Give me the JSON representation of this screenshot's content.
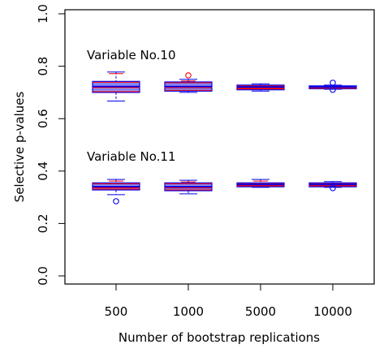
{
  "chart_data": {
    "type": "box",
    "xlabel": "Number of bootstrap replications",
    "ylabel": "Selective p-values",
    "categories": [
      "500",
      "1000",
      "5000",
      "10000"
    ],
    "ylim": [
      0.0,
      1.0
    ],
    "yticks": [
      "0.0",
      "0.2",
      "0.4",
      "0.6",
      "0.8",
      "1.0"
    ],
    "grid": false,
    "annotations": [
      {
        "text": "Variable No.10",
        "near_y": 0.84
      },
      {
        "text": "Variable No.11",
        "near_y": 0.44
      }
    ],
    "series": [
      {
        "name": "Variable No.10",
        "boxes": [
          {
            "category": "500",
            "lower_whisker": 0.667,
            "q1": 0.7,
            "median": 0.722,
            "q3": 0.742,
            "upper_whisker": 0.778,
            "outliers": []
          },
          {
            "category": "1000",
            "lower_whisker": 0.7,
            "q1": 0.705,
            "median": 0.722,
            "q3": 0.74,
            "upper_whisker": 0.75,
            "outliers": [
              0.765
            ]
          },
          {
            "category": "5000",
            "lower_whisker": 0.705,
            "q1": 0.71,
            "median": 0.72,
            "q3": 0.728,
            "upper_whisker": 0.733,
            "outliers": []
          },
          {
            "category": "10000",
            "lower_whisker": 0.712,
            "q1": 0.714,
            "median": 0.72,
            "q3": 0.725,
            "upper_whisker": 0.728,
            "outliers": [
              0.737,
              0.71
            ]
          }
        ]
      },
      {
        "name": "Variable No.11",
        "boxes": [
          {
            "category": "500",
            "lower_whisker": 0.31,
            "q1": 0.328,
            "median": 0.34,
            "q3": 0.355,
            "upper_whisker": 0.368,
            "outliers": [
              0.285
            ]
          },
          {
            "category": "1000",
            "lower_whisker": 0.313,
            "q1": 0.325,
            "median": 0.34,
            "q3": 0.355,
            "upper_whisker": 0.365,
            "outliers": []
          },
          {
            "category": "5000",
            "lower_whisker": 0.338,
            "q1": 0.34,
            "median": 0.348,
            "q3": 0.355,
            "upper_whisker": 0.368,
            "outliers": []
          },
          {
            "category": "10000",
            "lower_whisker": 0.338,
            "q1": 0.34,
            "median": 0.348,
            "q3": 0.355,
            "upper_whisker": 0.36,
            "outliers": [
              0.335
            ]
          }
        ]
      }
    ],
    "colors": {
      "box_fill": "#9a9cf0",
      "box_edge": "#0000ee",
      "whisker": "#0000ee",
      "overlay": "#ff0000",
      "outlier_red": "#ff0000",
      "outlier_blue": "#0000ee"
    }
  }
}
